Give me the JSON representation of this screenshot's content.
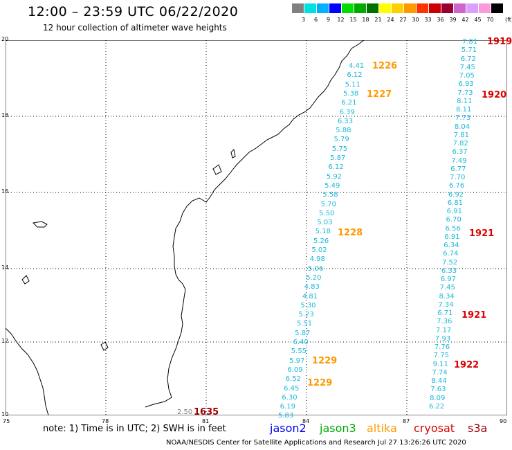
{
  "header": {
    "title": "12:00 – 23:59 UTC 06/22/2020",
    "subtitle": "12 hour collection of altimeter wave heights"
  },
  "legend": {
    "swatches": [
      {
        "color": "#808080",
        "label": "3"
      },
      {
        "color": "#00e0e0",
        "label": "6"
      },
      {
        "color": "#00b0ff",
        "label": "9"
      },
      {
        "color": "#0000ff",
        "label": "12"
      },
      {
        "color": "#00dd00",
        "label": "15"
      },
      {
        "color": "#00aa00",
        "label": "18"
      },
      {
        "color": "#007000",
        "label": "21"
      },
      {
        "color": "#ffff00",
        "label": "24"
      },
      {
        "color": "#ffd000",
        "label": "27"
      },
      {
        "color": "#ff9900",
        "label": "30"
      },
      {
        "color": "#ff3300",
        "label": "33"
      },
      {
        "color": "#cc0000",
        "label": "36"
      },
      {
        "color": "#990033",
        "label": "39"
      },
      {
        "color": "#cc66cc",
        "label": "42"
      },
      {
        "color": "#d9a0ff",
        "label": "45"
      },
      {
        "color": "#ff99dd",
        "label": "70"
      },
      {
        "color": "#000000",
        "label": ""
      }
    ],
    "unit": "(ft)"
  },
  "axes": {
    "lat_labels": [
      "20",
      "18",
      "16",
      "14",
      "12",
      "10"
    ],
    "lon_labels": [
      "75",
      "78",
      "81",
      "84",
      "87",
      "90"
    ]
  },
  "colors": {
    "jason2": "#0000ee",
    "jason3": "#00aa00",
    "altika": "#ff9900",
    "cryosat": "#dd0000",
    "s3a": "#990000",
    "value": "#19b8d8",
    "grey_value": "#808080"
  },
  "track1": {
    "values": [
      "4.41",
      "6.12",
      "5.11",
      "5.38",
      "6.21",
      "6.39",
      "6.33",
      "5.88",
      "5.79",
      "5.75",
      "5.87",
      "6.12",
      "5.92",
      "5.49",
      "5.58",
      "5.70",
      "5.50",
      "5.03",
      "5.18",
      "5.26",
      "5.02",
      "4.98",
      "5.06",
      "5.20",
      "4.83",
      "4.81",
      "5.30",
      "5.23",
      "5.51",
      "5.87",
      "6.40",
      "5.55",
      "5.97",
      "6.09",
      "6.52",
      "6.45",
      "6.30",
      "6.19",
      "5.83"
    ],
    "times": [
      {
        "label": "1226",
        "color": "altika"
      },
      {
        "label": "1227",
        "color": "altika"
      },
      {
        "label": "1228",
        "color": "altika"
      },
      {
        "label": "1229",
        "color": "altika"
      },
      {
        "label": "1229",
        "color": "altika"
      }
    ]
  },
  "track2": {
    "values": [
      "7.81",
      "5.71",
      "6.72",
      "7.45",
      "7.05",
      "6.93",
      "7.73",
      "8.11",
      "8.11",
      "7.73",
      "8.04",
      "7.81",
      "7.82",
      "6.37",
      "7.49",
      "6.77",
      "7.70",
      "6.76",
      "6.92",
      "6.81",
      "6.91",
      "6.70",
      "6.56",
      "6.91",
      "6.34",
      "6.74",
      "7.52",
      "6.33",
      "6.97",
      "7.45",
      "8.34",
      "7.34",
      "6.71",
      "7.36",
      "7.17",
      "7.93",
      "7.76",
      "7.75",
      "9.11",
      "7.74",
      "8.44",
      "7.63",
      "8.09",
      "6.22"
    ],
    "times": [
      {
        "label": "1919",
        "color": "cryosat"
      },
      {
        "label": "1920",
        "color": "cryosat"
      },
      {
        "label": "1921",
        "color": "cryosat"
      },
      {
        "label": "1921",
        "color": "cryosat"
      },
      {
        "label": "1922",
        "color": "cryosat"
      }
    ]
  },
  "s3a_point": {
    "value": "2.50",
    "time": "1635"
  },
  "footer": {
    "note": "note:  1) Time is in UTC;  2) SWH is in feet",
    "satellites": [
      "jason2",
      "jason3",
      "altika",
      "cryosat",
      "s3a"
    ],
    "credit": "NOAA/NESDIS Center for Satellite Applications and Research     Jul 27 13:26:26 UTC 2020"
  }
}
